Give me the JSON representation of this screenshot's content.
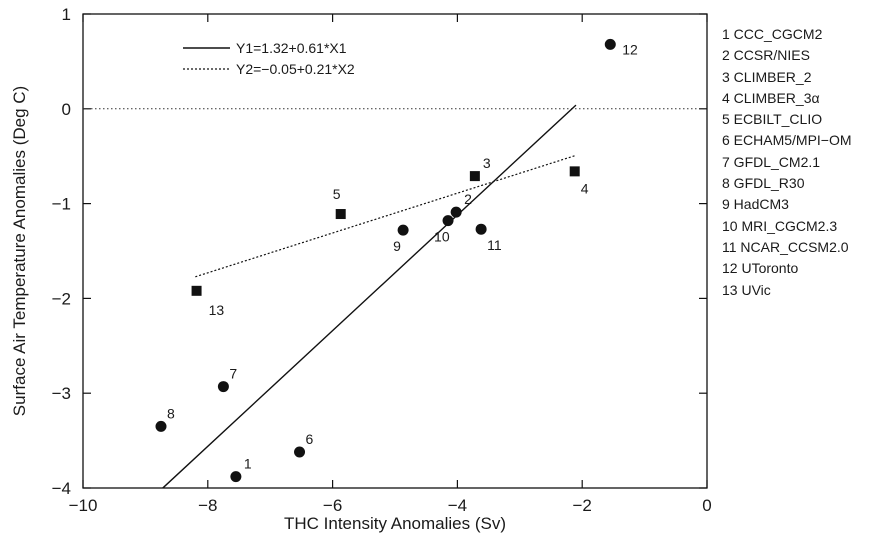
{
  "chart_data": {
    "type": "scatter",
    "xlabel": "THC Intensity Anomalies (Sv)",
    "ylabel": "Surface Air Temperature Anomalies (Deg C)",
    "xlim": [
      -10,
      0
    ],
    "ylim": [
      -4,
      1
    ],
    "xticks": [
      -10,
      -8,
      -6,
      -4,
      -2,
      0
    ],
    "xtick_labels": [
      "−10",
      "−8",
      "−6",
      "−4",
      "−2",
      "0"
    ],
    "yticks": [
      -4,
      -3,
      -2,
      -1,
      0,
      1
    ],
    "ytick_labels": [
      "−4",
      "−3",
      "−2",
      "−1",
      "0",
      "1"
    ],
    "grid": false,
    "zero_line": true,
    "legend_position": "top-left",
    "series": [
      {
        "marker": "circle",
        "points": [
          {
            "label": "1",
            "x": -7.55,
            "y": -3.88
          },
          {
            "label": "2",
            "x": -4.02,
            "y": -1.09
          },
          {
            "label": "6",
            "x": -6.53,
            "y": -3.62
          },
          {
            "label": "7",
            "x": -7.75,
            "y": -2.93
          },
          {
            "label": "8",
            "x": -8.75,
            "y": -3.35
          },
          {
            "label": "9",
            "x": -4.87,
            "y": -1.28
          },
          {
            "label": "10",
            "x": -4.15,
            "y": -1.18
          },
          {
            "label": "11",
            "x": -3.62,
            "y": -1.27
          },
          {
            "label": "12",
            "x": -1.55,
            "y": 0.68
          }
        ]
      },
      {
        "marker": "square",
        "points": [
          {
            "label": "3",
            "x": -3.72,
            "y": -0.71
          },
          {
            "label": "4",
            "x": -2.12,
            "y": -0.66
          },
          {
            "label": "5",
            "x": -5.87,
            "y": -1.11
          },
          {
            "label": "13",
            "x": -8.18,
            "y": -1.92
          }
        ]
      }
    ],
    "fits": [
      {
        "name": "Y1=1.32+0.61*X1",
        "style": "solid",
        "intercept": 1.32,
        "slope": 0.61,
        "x_range": [
          -8.72,
          -2.1
        ]
      },
      {
        "name": "Y2=−0.05+0.21*X2",
        "style": "dotted",
        "intercept": -0.05,
        "slope": 0.21,
        "x_range": [
          -8.2,
          -2.12
        ]
      }
    ],
    "model_list": [
      "1 CCC_CGCM2",
      "2 CCSR/NIES",
      "3 CLIMBER_2",
      "4 CLIMBER_3α",
      "5 ECBILT_CLIO",
      "6 ECHAM5/MPI−OM",
      "7 GFDL_CM2.1",
      "8 GFDL_R30",
      "9 HadCM3",
      "10 MRI_CGCM2.3",
      "11 NCAR_CCSM2.0",
      "12 UToronto",
      "13 UVic"
    ]
  }
}
